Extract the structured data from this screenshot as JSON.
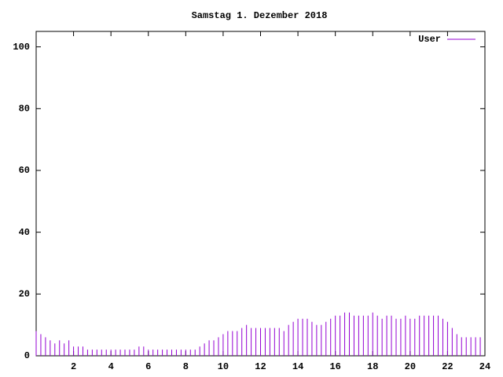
{
  "chart_data": {
    "type": "impulses",
    "title": "Samstag 1. Dezember 2018",
    "x": [
      0,
      0.25,
      0.5,
      0.75,
      1,
      1.25,
      1.5,
      1.75,
      2,
      2.25,
      2.5,
      2.75,
      3,
      3.25,
      3.5,
      3.75,
      4,
      4.25,
      4.5,
      4.75,
      5,
      5.25,
      5.5,
      5.75,
      6,
      6.25,
      6.5,
      6.75,
      7,
      7.25,
      7.5,
      7.75,
      8,
      8.25,
      8.5,
      8.75,
      9,
      9.25,
      9.5,
      9.75,
      10,
      10.25,
      10.5,
      10.75,
      11,
      11.25,
      11.5,
      11.75,
      12,
      12.25,
      12.5,
      12.75,
      13,
      13.25,
      13.5,
      13.75,
      14,
      14.25,
      14.5,
      14.75,
      15,
      15.25,
      15.5,
      15.75,
      16,
      16.25,
      16.5,
      16.75,
      17,
      17.25,
      17.5,
      17.75,
      18,
      18.25,
      18.5,
      18.75,
      19,
      19.25,
      19.5,
      19.75,
      20,
      20.25,
      20.5,
      20.75,
      21,
      21.25,
      21.5,
      21.75,
      22,
      22.25,
      22.5,
      22.75,
      23,
      23.25,
      23.5,
      23.75
    ],
    "series": [
      {
        "name": "User",
        "color": "#9400d3",
        "values": [
          8,
          7,
          6,
          5,
          4,
          5,
          4,
          5,
          3,
          3,
          3,
          2,
          2,
          2,
          2,
          2,
          2,
          2,
          2,
          2,
          2,
          2,
          3,
          3,
          2,
          2,
          2,
          2,
          2,
          2,
          2,
          2,
          2,
          2,
          2,
          3,
          4,
          5,
          5,
          6,
          7,
          8,
          8,
          8,
          9,
          10,
          9,
          9,
          9,
          9,
          9,
          9,
          9,
          8,
          10,
          11,
          12,
          12,
          12,
          11,
          10,
          10,
          11,
          12,
          13,
          13,
          14,
          14,
          13,
          13,
          13,
          13,
          14,
          13,
          12,
          13,
          13,
          12,
          12,
          13,
          12,
          12,
          13,
          13,
          13,
          13,
          13,
          12,
          11,
          9,
          7,
          6,
          6,
          6,
          6,
          6
        ]
      }
    ],
    "xlim": [
      0,
      24
    ],
    "xticks": [
      2,
      4,
      6,
      8,
      10,
      12,
      14,
      16,
      18,
      20,
      22,
      24
    ],
    "ylim": [
      0,
      105
    ],
    "yticks": [
      0,
      20,
      40,
      60,
      80,
      100
    ],
    "legend": "top-right"
  }
}
